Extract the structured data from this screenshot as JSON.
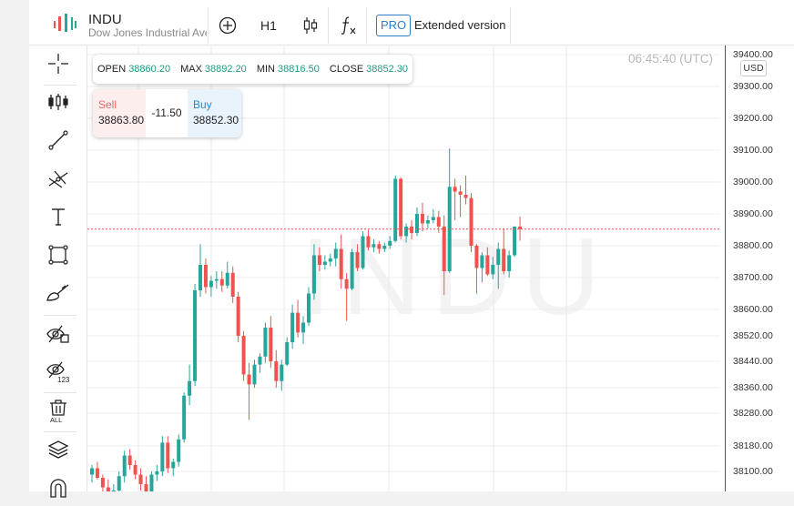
{
  "header": {
    "symbol": "INDU",
    "name": "Dow Jones Industrial Ave",
    "timeframe": "H1",
    "pro_badge": "PRO",
    "extended_label": "Extended version"
  },
  "icons": {
    "toolbar": [
      "add-indicator-icon",
      "candlestick-icon",
      "function-icon"
    ],
    "sidebar": [
      "crosshair-icon",
      "chart-type-icon",
      "trend-line-icon",
      "fork-icon",
      "text-icon",
      "rectangle-icon",
      "brush-icon",
      "hide-drawings-icon",
      "hide-indicators-icon",
      "delete-all-icon",
      "layers-icon",
      "magnet-icon"
    ]
  },
  "ohlc": {
    "open_label": "OPEN",
    "open": "38860.20",
    "max_label": "MAX",
    "max": "38892.20",
    "min_label": "MIN",
    "min": "38816.50",
    "close_label": "CLOSE",
    "close": "38852.30"
  },
  "trade": {
    "sell_label": "Sell",
    "sell_price": "38863.80",
    "spread": "-11.50",
    "buy_label": "Buy",
    "buy_price": "38852.30"
  },
  "clock": "06:45:40 (UTC)",
  "currency": "USD",
  "watermark": "INDU",
  "colors": {
    "up": "#26a69a",
    "down": "#ef5350",
    "accent": "#2f7cc6"
  },
  "chart_data": {
    "type": "candlestick",
    "title": "",
    "current_price": 38852.3,
    "price_ticks": [
      38100,
      38180,
      38280,
      38360,
      38440,
      38520,
      38600,
      38700,
      38800,
      38900,
      39000,
      39100,
      39200,
      39300,
      39400
    ],
    "price_tick_labels": [
      "38100.00",
      "38180.00",
      "38280.00",
      "38360.00",
      "38440.00",
      "38520.00",
      "38600.00",
      "38700.00",
      "38800.00",
      "38900.00",
      "39000.00",
      "39100.00",
      "39200.00",
      "39300.00",
      "39400.00"
    ],
    "ohlc_series": [
      [
        38090,
        38120,
        38065,
        38110
      ],
      [
        38110,
        38130,
        38075,
        38080
      ],
      [
        38080,
        38090,
        38035,
        38050
      ],
      [
        38050,
        38075,
        37990,
        38010
      ],
      [
        38010,
        38060,
        37990,
        38040
      ],
      [
        38040,
        38100,
        38025,
        38085
      ],
      [
        38085,
        38165,
        38065,
        38150
      ],
      [
        38150,
        38170,
        38105,
        38120
      ],
      [
        38120,
        38135,
        38075,
        38090
      ],
      [
        38090,
        38110,
        38040,
        38060
      ],
      [
        38060,
        38085,
        38020,
        38035
      ],
      [
        38035,
        38100,
        38030,
        38090
      ],
      [
        38090,
        38120,
        38070,
        38100
      ],
      [
        38100,
        38210,
        38085,
        38190
      ],
      [
        38190,
        38210,
        38095,
        38110
      ],
      [
        38110,
        38140,
        38085,
        38130
      ],
      [
        38130,
        38215,
        38115,
        38200
      ],
      [
        38200,
        38345,
        38190,
        38335
      ],
      [
        38335,
        38430,
        38305,
        38380
      ],
      [
        38380,
        38680,
        38365,
        38660
      ],
      [
        38660,
        38805,
        38640,
        38740
      ],
      [
        38740,
        38760,
        38650,
        38670
      ],
      [
        38670,
        38705,
        38640,
        38690
      ],
      [
        38690,
        38720,
        38665,
        38695
      ],
      [
        38695,
        38720,
        38655,
        38675
      ],
      [
        38675,
        38750,
        38665,
        38715
      ],
      [
        38715,
        38735,
        38620,
        38640
      ],
      [
        38640,
        38655,
        38500,
        38520
      ],
      [
        38520,
        38535,
        38380,
        38400
      ],
      [
        38400,
        38435,
        38260,
        38370
      ],
      [
        38370,
        38445,
        38360,
        38430
      ],
      [
        38430,
        38465,
        38405,
        38455
      ],
      [
        38455,
        38560,
        38435,
        38545
      ],
      [
        38545,
        38580,
        38420,
        38440
      ],
      [
        38440,
        38475,
        38360,
        38380
      ],
      [
        38380,
        38445,
        38350,
        38430
      ],
      [
        38430,
        38515,
        38425,
        38500
      ],
      [
        38500,
        38615,
        38480,
        38590
      ],
      [
        38590,
        38630,
        38515,
        38530
      ],
      [
        38530,
        38580,
        38495,
        38560
      ],
      [
        38560,
        38670,
        38550,
        38650
      ],
      [
        38650,
        38805,
        38630,
        38770
      ],
      [
        38770,
        38795,
        38720,
        38740
      ],
      [
        38740,
        38770,
        38725,
        38750
      ],
      [
        38750,
        38775,
        38735,
        38760
      ],
      [
        38760,
        38810,
        38735,
        38790
      ],
      [
        38790,
        38835,
        38665,
        38695
      ],
      [
        38695,
        38715,
        38565,
        38665
      ],
      [
        38665,
        38790,
        38660,
        38780
      ],
      [
        38780,
        38805,
        38720,
        38730
      ],
      [
        38730,
        38845,
        38725,
        38830
      ],
      [
        38830,
        38850,
        38785,
        38795
      ],
      [
        38795,
        38820,
        38780,
        38805
      ],
      [
        38805,
        38815,
        38775,
        38790
      ],
      [
        38790,
        38810,
        38780,
        38800
      ],
      [
        38800,
        38830,
        38790,
        38815
      ],
      [
        38815,
        39020,
        38810,
        39010
      ],
      [
        39010,
        39015,
        38820,
        38830
      ],
      [
        38830,
        38870,
        38810,
        38860
      ],
      [
        38860,
        38880,
        38820,
        38840
      ],
      [
        38840,
        38920,
        38830,
        38900
      ],
      [
        38900,
        38935,
        38845,
        38870
      ],
      [
        38870,
        38895,
        38855,
        38880
      ],
      [
        38880,
        38915,
        38870,
        38890
      ],
      [
        38890,
        38910,
        38840,
        38860
      ],
      [
        38860,
        38895,
        38645,
        38720
      ],
      [
        38720,
        39105,
        38715,
        38985
      ],
      [
        38985,
        39010,
        38880,
        38970
      ],
      [
        38970,
        38990,
        38890,
        38960
      ],
      [
        38960,
        39020,
        38930,
        38950
      ],
      [
        38950,
        38965,
        38780,
        38800
      ],
      [
        38800,
        38805,
        38650,
        38730
      ],
      [
        38730,
        38780,
        38685,
        38770
      ],
      [
        38770,
        38795,
        38705,
        38710
      ],
      [
        38710,
        38765,
        38695,
        38740
      ],
      [
        38740,
        38810,
        38665,
        38790
      ],
      [
        38790,
        38855,
        38710,
        38720
      ],
      [
        38720,
        38785,
        38700,
        38770
      ],
      [
        38770,
        38845,
        38765,
        38860
      ],
      [
        38860,
        38892,
        38816,
        38852
      ]
    ]
  }
}
